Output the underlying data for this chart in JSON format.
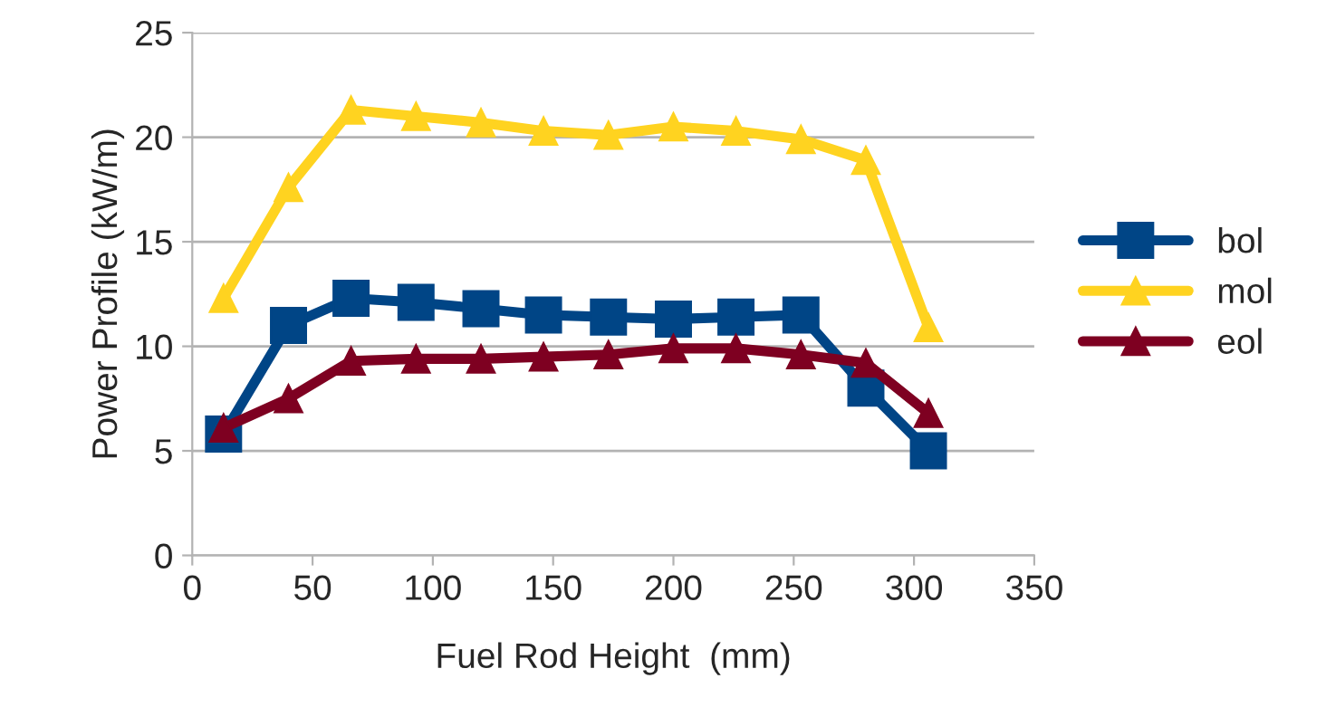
{
  "chart_data": {
    "type": "line",
    "xlabel": "Fuel Rod Height  (mm)",
    "ylabel": "Power Profile (kW/m)",
    "x": [
      13,
      40,
      66,
      93,
      120,
      146,
      173,
      200,
      226,
      253,
      280,
      306
    ],
    "series": [
      {
        "name": "bol",
        "color": "#004586",
        "marker": "square",
        "values": [
          5.8,
          11.0,
          12.3,
          12.1,
          11.8,
          11.5,
          11.4,
          11.3,
          11.4,
          11.5,
          8.0,
          5.0
        ]
      },
      {
        "name": "mol",
        "color": "#ffd320",
        "marker": "triangle",
        "values": [
          12.3,
          17.6,
          21.3,
          21.0,
          20.7,
          20.3,
          20.1,
          20.5,
          20.3,
          19.9,
          18.9,
          10.9
        ]
      },
      {
        "name": "eol",
        "color": "#7e0021",
        "marker": "triangle",
        "values": [
          6.1,
          7.5,
          9.3,
          9.4,
          9.4,
          9.5,
          9.6,
          9.9,
          9.9,
          9.6,
          9.2,
          6.8
        ]
      }
    ],
    "xlim": [
      0,
      350
    ],
    "xticks": [
      0,
      50,
      100,
      150,
      200,
      250,
      300,
      350
    ],
    "ylim": [
      0,
      25
    ],
    "yticks": [
      0,
      5,
      10,
      15,
      20,
      25
    ],
    "grid": "y",
    "legend": "right",
    "line_style": "solid"
  }
}
